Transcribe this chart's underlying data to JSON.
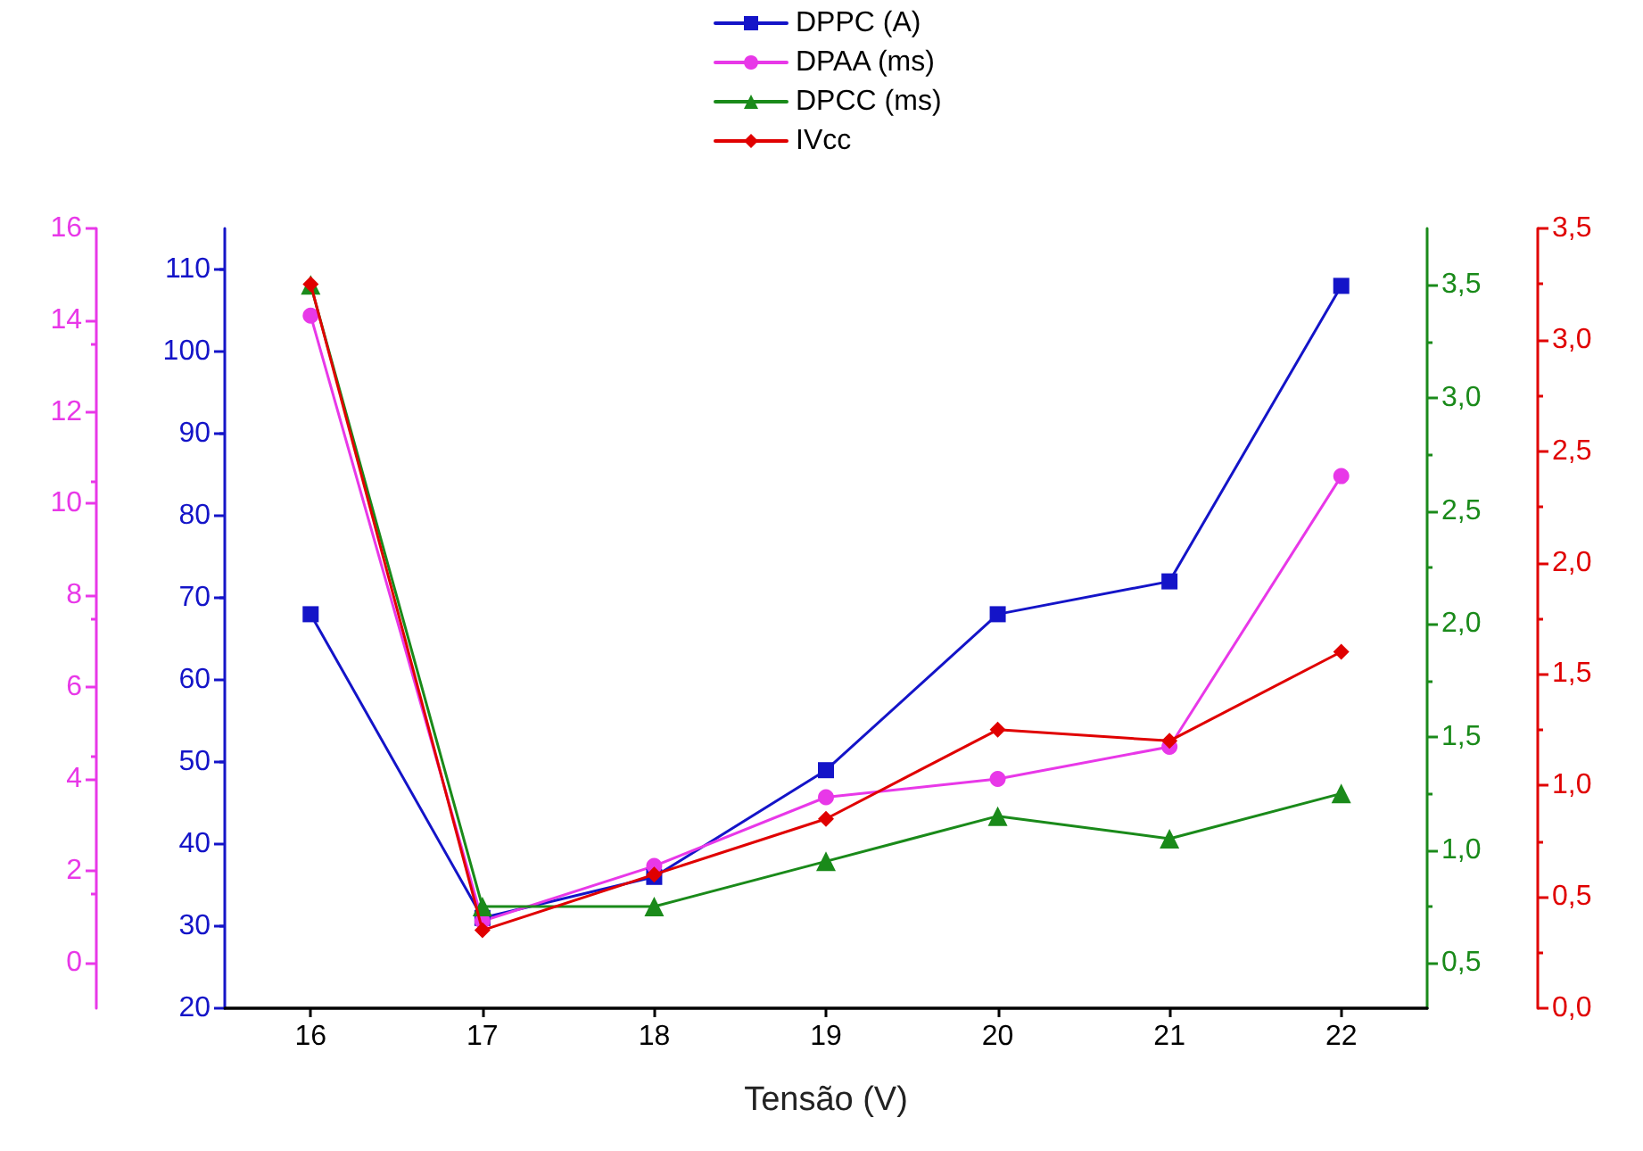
{
  "chart_data": [
    {
      "type": "line",
      "xlabel": "Tensão (V)",
      "x": [
        16,
        17,
        18,
        19,
        20,
        21,
        22
      ],
      "xlim": [
        15.5,
        22.5
      ],
      "xticks": [
        16,
        17,
        18,
        19,
        20,
        21,
        22
      ],
      "ylim": [
        20,
        115
      ],
      "yticks": [
        20,
        30,
        40,
        50,
        60,
        70,
        80,
        90,
        100,
        110
      ],
      "y2lim": [
        -1,
        16
      ],
      "y2ticks": [
        0,
        2,
        4,
        6,
        8,
        10,
        12,
        14,
        16
      ],
      "y3lim": [
        0.3,
        3.75
      ],
      "y3ticks": [
        {
          "value": 0.5,
          "label": "0,5"
        },
        {
          "value": 1,
          "label": "1,0"
        },
        {
          "value": 1.5,
          "label": "1,5"
        },
        {
          "value": 2,
          "label": "2,0"
        },
        {
          "value": 2.5,
          "label": "2,5"
        },
        {
          "value": 3,
          "label": "3,0"
        },
        {
          "value": 3.5,
          "label": "3,5"
        }
      ],
      "legend": "top",
      "grid": false,
      "line_style": "solid",
      "series": [
        {
          "name": "DPPC (A)",
          "color": "#1414c8",
          "marker": "square",
          "values": [
            68,
            31,
            36,
            49,
            68,
            72,
            108
          ]
        },
        {
          "name": "DPAA (ms)",
          "color": "#e838e8",
          "marker": "circle",
          "axis": "y2",
          "values": [
            14.1,
            0.9,
            2.1,
            3.6,
            4.0,
            4.7,
            10.6
          ]
        },
        {
          "name": "DPCC (ms)",
          "color": "#1a8a1a",
          "marker": "triangle",
          "axis": "y3",
          "values": [
            3.5,
            0.75,
            0.75,
            0.95,
            1.15,
            1.05,
            1.25
          ]
        }
      ]
    },
    {
      "type": "line",
      "x": [
        16,
        17,
        18,
        19,
        20,
        21,
        22
      ],
      "xlim": [
        15.5,
        22.5
      ],
      "tick_labels": "y",
      "ylim": [
        0,
        3.5
      ],
      "yticks": [
        {
          "value": 0,
          "label": "0,0"
        },
        {
          "value": 0.5,
          "label": "0,5"
        },
        {
          "value": 1,
          "label": "1,0"
        },
        {
          "value": 1.5,
          "label": "1,5"
        },
        {
          "value": 2,
          "label": "2,0"
        },
        {
          "value": 2.5,
          "label": "2,5"
        },
        {
          "value": 3,
          "label": "3,0"
        },
        {
          "value": 3.5,
          "label": "3,5"
        }
      ],
      "legend": "top",
      "grid": false,
      "line_style": "solid",
      "series": [
        {
          "name": "IVcc",
          "color": "#e00000",
          "marker": "diamond",
          "values": [
            3.25,
            0.35,
            0.6,
            0.85,
            1.25,
            1.2,
            1.6
          ]
        }
      ]
    }
  ]
}
